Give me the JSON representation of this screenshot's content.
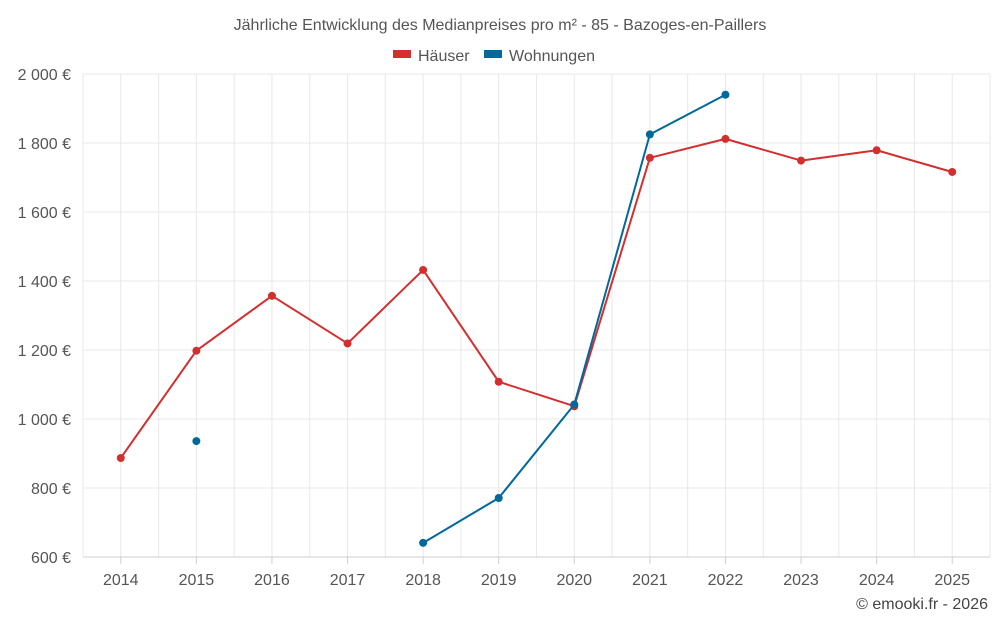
{
  "chart_data": {
    "type": "line",
    "title": "Jährliche Entwicklung des Medianpreises pro m² - 85 - Bazoges-en-Paillers",
    "categories": [
      "2014",
      "2015",
      "2016",
      "2017",
      "2018",
      "2019",
      "2020",
      "2021",
      "2022",
      "2023",
      "2024",
      "2025"
    ],
    "series": [
      {
        "name": "Häuser",
        "color": "#d32f2f",
        "values": [
          887,
          1198,
          1357,
          1219,
          1432,
          1108,
          1037,
          1757,
          1812,
          1749,
          1779,
          1716
        ]
      },
      {
        "name": "Wohnungen",
        "color": "#01689b",
        "values": [
          null,
          936,
          null,
          null,
          641,
          771,
          1042,
          1825,
          1940,
          null,
          null,
          null
        ]
      }
    ],
    "ylim": [
      600,
      2000
    ],
    "yticks": [
      600,
      800,
      1000,
      1200,
      1400,
      1600,
      1800,
      2000
    ],
    "ytick_labels": [
      "600 €",
      "800 €",
      "1 000 €",
      "1 200 €",
      "1 400 €",
      "1 600 €",
      "1 800 €",
      "2 000 €"
    ],
    "grid": true,
    "legend_position": "top-center",
    "credit": "© emooki.fr - 2026"
  }
}
